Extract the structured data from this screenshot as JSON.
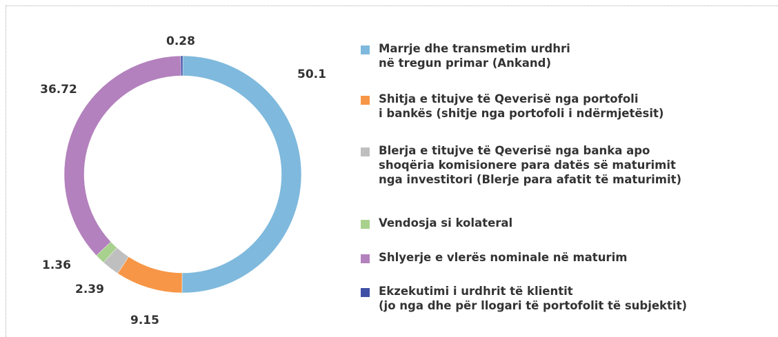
{
  "chart_data": {
    "type": "donut",
    "categories": [
      "Marrje dhe transmetim urdhri\nnë tregun primar (Ankand)",
      "Shitja e titujve të Qeverisë nga portofoli\ni bankës (shitje nga portofoli i ndërmjetësit)",
      "Blerja e titujve të Qeverisë nga banka apo\nshoqëria komisionere para datës së maturimit\nnga investitori (Blerje para afatit të maturimit)",
      "Vendosja si kolateral",
      "Shlyerje e vlerës nominale në maturim",
      "Ekzekutimi i urdhrit të klientit\n(jo nga dhe për llogari të portofolit të subjektit)"
    ],
    "values": [
      50.1,
      9.15,
      2.39,
      1.36,
      36.72,
      0.28
    ],
    "colors": [
      "#7fb9dd",
      "#f79646",
      "#bfbfbf",
      "#a9d18e",
      "#b381bd",
      "#3f4fa5"
    ],
    "legend": "right"
  }
}
